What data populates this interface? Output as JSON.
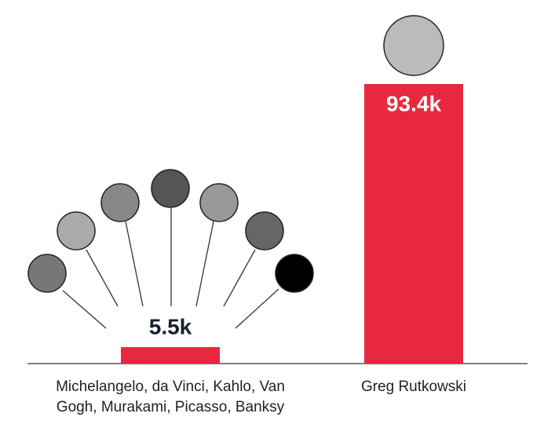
{
  "chart_data": {
    "type": "bar",
    "categories": [
      "Michelangelo, da Vinci, Kahlo, Van Gogh, Murakami, Picasso, Banksy",
      "Greg Rutkowski"
    ],
    "values": [
      5500,
      93400
    ],
    "value_labels": [
      "5.5k",
      "93.4k"
    ],
    "color": "#e8283f"
  }
}
